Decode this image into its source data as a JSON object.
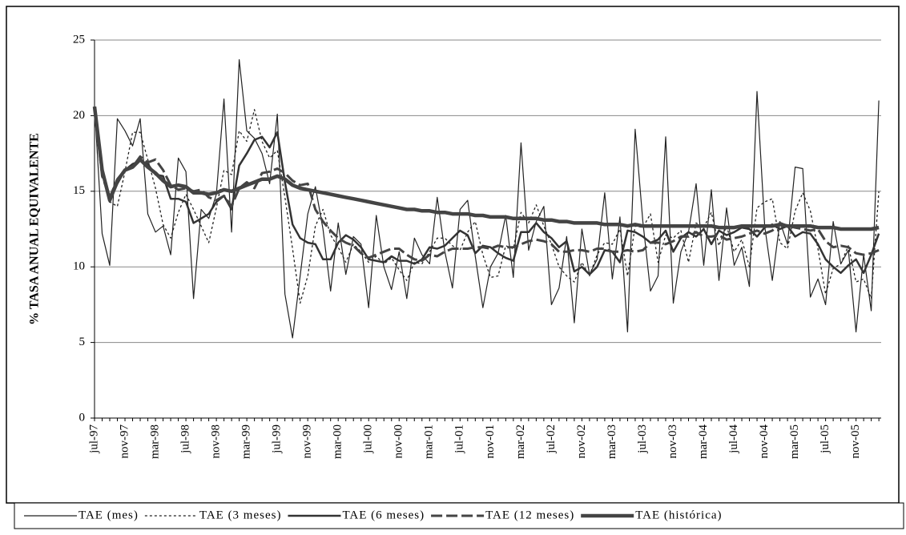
{
  "chart_data": {
    "type": "line",
    "y_label": "% TASA ANUAL EQUIVALENTE",
    "categories": [
      "jul-97",
      null,
      null,
      null,
      "nov-97",
      null,
      null,
      null,
      "mar-98",
      null,
      null,
      null,
      "jul-98",
      null,
      null,
      null,
      "nov-98",
      null,
      null,
      null,
      "mar-99",
      null,
      null,
      null,
      "jul-99",
      null,
      null,
      null,
      "nov-99",
      null,
      null,
      null,
      "mar-00",
      null,
      null,
      null,
      "jul-00",
      null,
      null,
      null,
      "nov-00",
      null,
      null,
      null,
      "mar-01",
      null,
      null,
      null,
      "jul-01",
      null,
      null,
      null,
      "nov-01",
      null,
      null,
      null,
      "mar-02",
      null,
      null,
      null,
      "jul-02",
      null,
      null,
      null,
      "nov-02",
      null,
      null,
      null,
      "mar-03",
      null,
      null,
      null,
      "jul-03",
      null,
      null,
      null,
      "nov-03",
      null,
      null,
      null,
      "mar-04",
      null,
      null,
      null,
      "jul-04",
      null,
      null,
      null,
      "nov-04",
      null,
      null,
      null,
      "mar-05",
      null,
      null,
      null,
      "jul-05",
      null,
      null,
      null,
      "nov-05",
      null,
      null,
      null
    ],
    "ylim": [
      0,
      25
    ],
    "yticks": [
      0,
      5,
      10,
      15,
      20,
      25
    ],
    "grid": true,
    "legend": "bottom",
    "series": [
      {
        "name": "TAE (mes)",
        "color": "#222222",
        "line_width": 1.2,
        "dash": "none",
        "values": [
          20.6,
          12.2,
          10.1,
          19.8,
          19.0,
          18.0,
          19.8,
          13.5,
          12.3,
          12.7,
          10.8,
          17.2,
          16.3,
          7.9,
          13.8,
          13.2,
          14.8,
          21.1,
          12.3,
          23.7,
          19.0,
          18.5,
          17.5,
          15.5,
          20.1,
          8.2,
          5.3,
          9.4,
          13.5,
          15.3,
          12.5,
          8.4,
          12.9,
          9.5,
          12.0,
          11.5,
          7.3,
          13.4,
          10.0,
          8.5,
          11.0,
          7.9,
          11.9,
          10.8,
          10.2,
          14.6,
          11.0,
          8.6,
          13.8,
          14.4,
          10.7,
          7.3,
          10.0,
          10.9,
          13.4,
          9.3,
          18.2,
          11.1,
          13.0,
          14.0,
          7.5,
          8.6,
          12.0,
          6.3,
          12.5,
          9.5,
          10.5,
          14.9,
          9.2,
          13.3,
          5.7,
          19.1,
          13.0,
          8.4,
          9.4,
          18.6,
          7.6,
          11.0,
          12.3,
          15.5,
          10.1,
          15.1,
          9.1,
          13.9,
          10.1,
          11.3,
          8.7,
          21.6,
          12.7,
          9.1,
          13.0,
          11.5,
          16.6,
          16.5,
          8.0,
          9.2,
          7.5,
          13.0,
          10.2,
          11.1,
          5.7,
          10.8,
          7.1,
          21.0
        ]
      },
      {
        "name": "TAE (3 meses)",
        "color": "#222222",
        "line_width": 1.3,
        "dash": "3 3",
        "values": [
          20.6,
          16.4,
          14.3,
          14.0,
          16.3,
          18.9,
          18.9,
          17.1,
          15.2,
          12.8,
          11.9,
          13.6,
          14.8,
          13.8,
          12.7,
          11.6,
          13.9,
          16.4,
          16.1,
          19.0,
          18.3,
          20.4,
          18.3,
          17.2,
          17.7,
          14.6,
          11.2,
          7.6,
          9.4,
          12.7,
          13.8,
          12.1,
          11.3,
          10.3,
          11.5,
          11.0,
          10.3,
          10.7,
          10.2,
          10.6,
          9.8,
          9.1,
          10.3,
          10.2,
          11.0,
          11.9,
          11.9,
          11.4,
          11.1,
          12.3,
          13.0,
          10.8,
          9.3,
          9.4,
          11.4,
          11.2,
          13.6,
          12.9,
          14.1,
          12.7,
          11.5,
          10.0,
          9.4,
          9.0,
          10.3,
          9.4,
          10.8,
          11.6,
          11.5,
          12.5,
          9.4,
          12.7,
          12.6,
          13.5,
          10.3,
          12.1,
          11.9,
          12.4,
          10.3,
          12.9,
          12.6,
          13.6,
          11.4,
          12.7,
          11.0,
          11.8,
          10.0,
          13.9,
          14.3,
          14.5,
          11.6,
          11.2,
          13.7,
          14.9,
          13.7,
          11.2,
          8.2,
          9.9,
          10.2,
          11.4,
          9.0,
          9.2,
          7.9,
          15.0
        ]
      },
      {
        "name": "TAE (6 meses)",
        "color": "#333333",
        "line_width": 2.5,
        "dash": "none",
        "values": [
          20.6,
          16.5,
          14.3,
          15.5,
          16.4,
          16.8,
          17.0,
          16.8,
          16.1,
          16.0,
          14.5,
          14.5,
          14.3,
          12.9,
          13.2,
          13.5,
          14.3,
          14.7,
          13.8,
          16.7,
          17.5,
          18.4,
          18.6,
          17.9,
          18.9,
          15.6,
          12.8,
          11.9,
          11.6,
          11.5,
          10.5,
          10.5,
          11.6,
          12.1,
          11.8,
          11.3,
          10.5,
          10.4,
          10.3,
          10.7,
          10.4,
          10.4,
          10.2,
          10.5,
          11.3,
          11.2,
          11.4,
          11.9,
          12.4,
          12.1,
          10.9,
          11.4,
          11.3,
          10.9,
          10.6,
          10.4,
          12.3,
          12.3,
          12.9,
          12.3,
          11.9,
          11.3,
          11.7,
          9.7,
          10.0,
          9.5,
          10.0,
          11.1,
          11.0,
          10.3,
          12.4,
          12.3,
          12.0,
          11.6,
          11.8,
          12.4,
          11.0,
          11.9,
          12.3,
          12.0,
          12.5,
          11.5,
          12.4,
          12.1,
          12.3,
          12.6,
          12.5,
          12.0,
          12.6,
          12.8,
          12.5,
          12.7,
          12.0,
          12.3,
          12.2,
          11.5,
          10.5,
          10.0,
          9.6,
          10.1,
          10.5,
          9.6,
          10.8,
          12.2
        ]
      },
      {
        "name": "TAE (12 meses)",
        "color": "#444444",
        "line_width": 3,
        "dash": "14 5",
        "values": [
          20.6,
          16.0,
          14.6,
          15.8,
          16.4,
          16.6,
          17.3,
          16.9,
          17.1,
          16.4,
          15.4,
          15.1,
          15.2,
          15.0,
          15.1,
          14.6,
          14.4,
          14.7,
          14.0,
          15.2,
          15.6,
          15.2,
          16.2,
          16.3,
          16.5,
          16.2,
          15.7,
          15.4,
          15.5,
          13.8,
          13.0,
          12.4,
          11.9,
          11.6,
          11.4,
          10.9,
          10.6,
          10.8,
          11.0,
          11.2,
          11.2,
          10.8,
          10.5,
          10.4,
          10.8,
          10.7,
          11.0,
          11.2,
          11.2,
          11.2,
          11.3,
          11.3,
          11.2,
          11.4,
          11.3,
          11.3,
          11.5,
          11.7,
          11.8,
          11.7,
          11.5,
          11.0,
          11.0,
          11.1,
          11.1,
          11.0,
          11.2,
          11.2,
          11.0,
          11.0,
          11.1,
          11.0,
          11.1,
          11.6,
          11.6,
          11.5,
          11.7,
          12.0,
          12.0,
          12.3,
          12.0,
          12.0,
          12.1,
          11.8,
          11.9,
          12.0,
          12.2,
          12.4,
          12.2,
          12.4,
          12.9,
          12.7,
          12.6,
          12.5,
          12.4,
          12.5,
          11.7,
          11.3,
          11.4,
          11.3,
          10.9,
          10.8,
          10.9,
          11.1
        ]
      },
      {
        "name": "TAE (histórica)",
        "color": "#444444",
        "line_width": 4.5,
        "dash": "none",
        "values": [
          20.6,
          16.4,
          14.4,
          15.7,
          16.4,
          16.6,
          17.1,
          16.6,
          16.2,
          15.7,
          15.3,
          15.4,
          15.3,
          14.9,
          14.9,
          14.8,
          14.9,
          15.1,
          15.0,
          15.2,
          15.4,
          15.6,
          15.8,
          15.8,
          16.0,
          15.8,
          15.4,
          15.2,
          15.1,
          15.0,
          14.9,
          14.8,
          14.7,
          14.6,
          14.5,
          14.4,
          14.3,
          14.2,
          14.1,
          14.0,
          13.9,
          13.8,
          13.8,
          13.7,
          13.7,
          13.6,
          13.6,
          13.5,
          13.5,
          13.5,
          13.4,
          13.4,
          13.3,
          13.3,
          13.3,
          13.2,
          13.2,
          13.2,
          13.2,
          13.1,
          13.1,
          13.0,
          13.0,
          12.9,
          12.9,
          12.9,
          12.9,
          12.8,
          12.8,
          12.8,
          12.7,
          12.8,
          12.7,
          12.7,
          12.7,
          12.7,
          12.7,
          12.7,
          12.7,
          12.7,
          12.7,
          12.7,
          12.6,
          12.6,
          12.6,
          12.7,
          12.7,
          12.7,
          12.7,
          12.7,
          12.8,
          12.7,
          12.7,
          12.7,
          12.7,
          12.6,
          12.6,
          12.6,
          12.5,
          12.5,
          12.5,
          12.5,
          12.5,
          12.6
        ]
      }
    ]
  }
}
